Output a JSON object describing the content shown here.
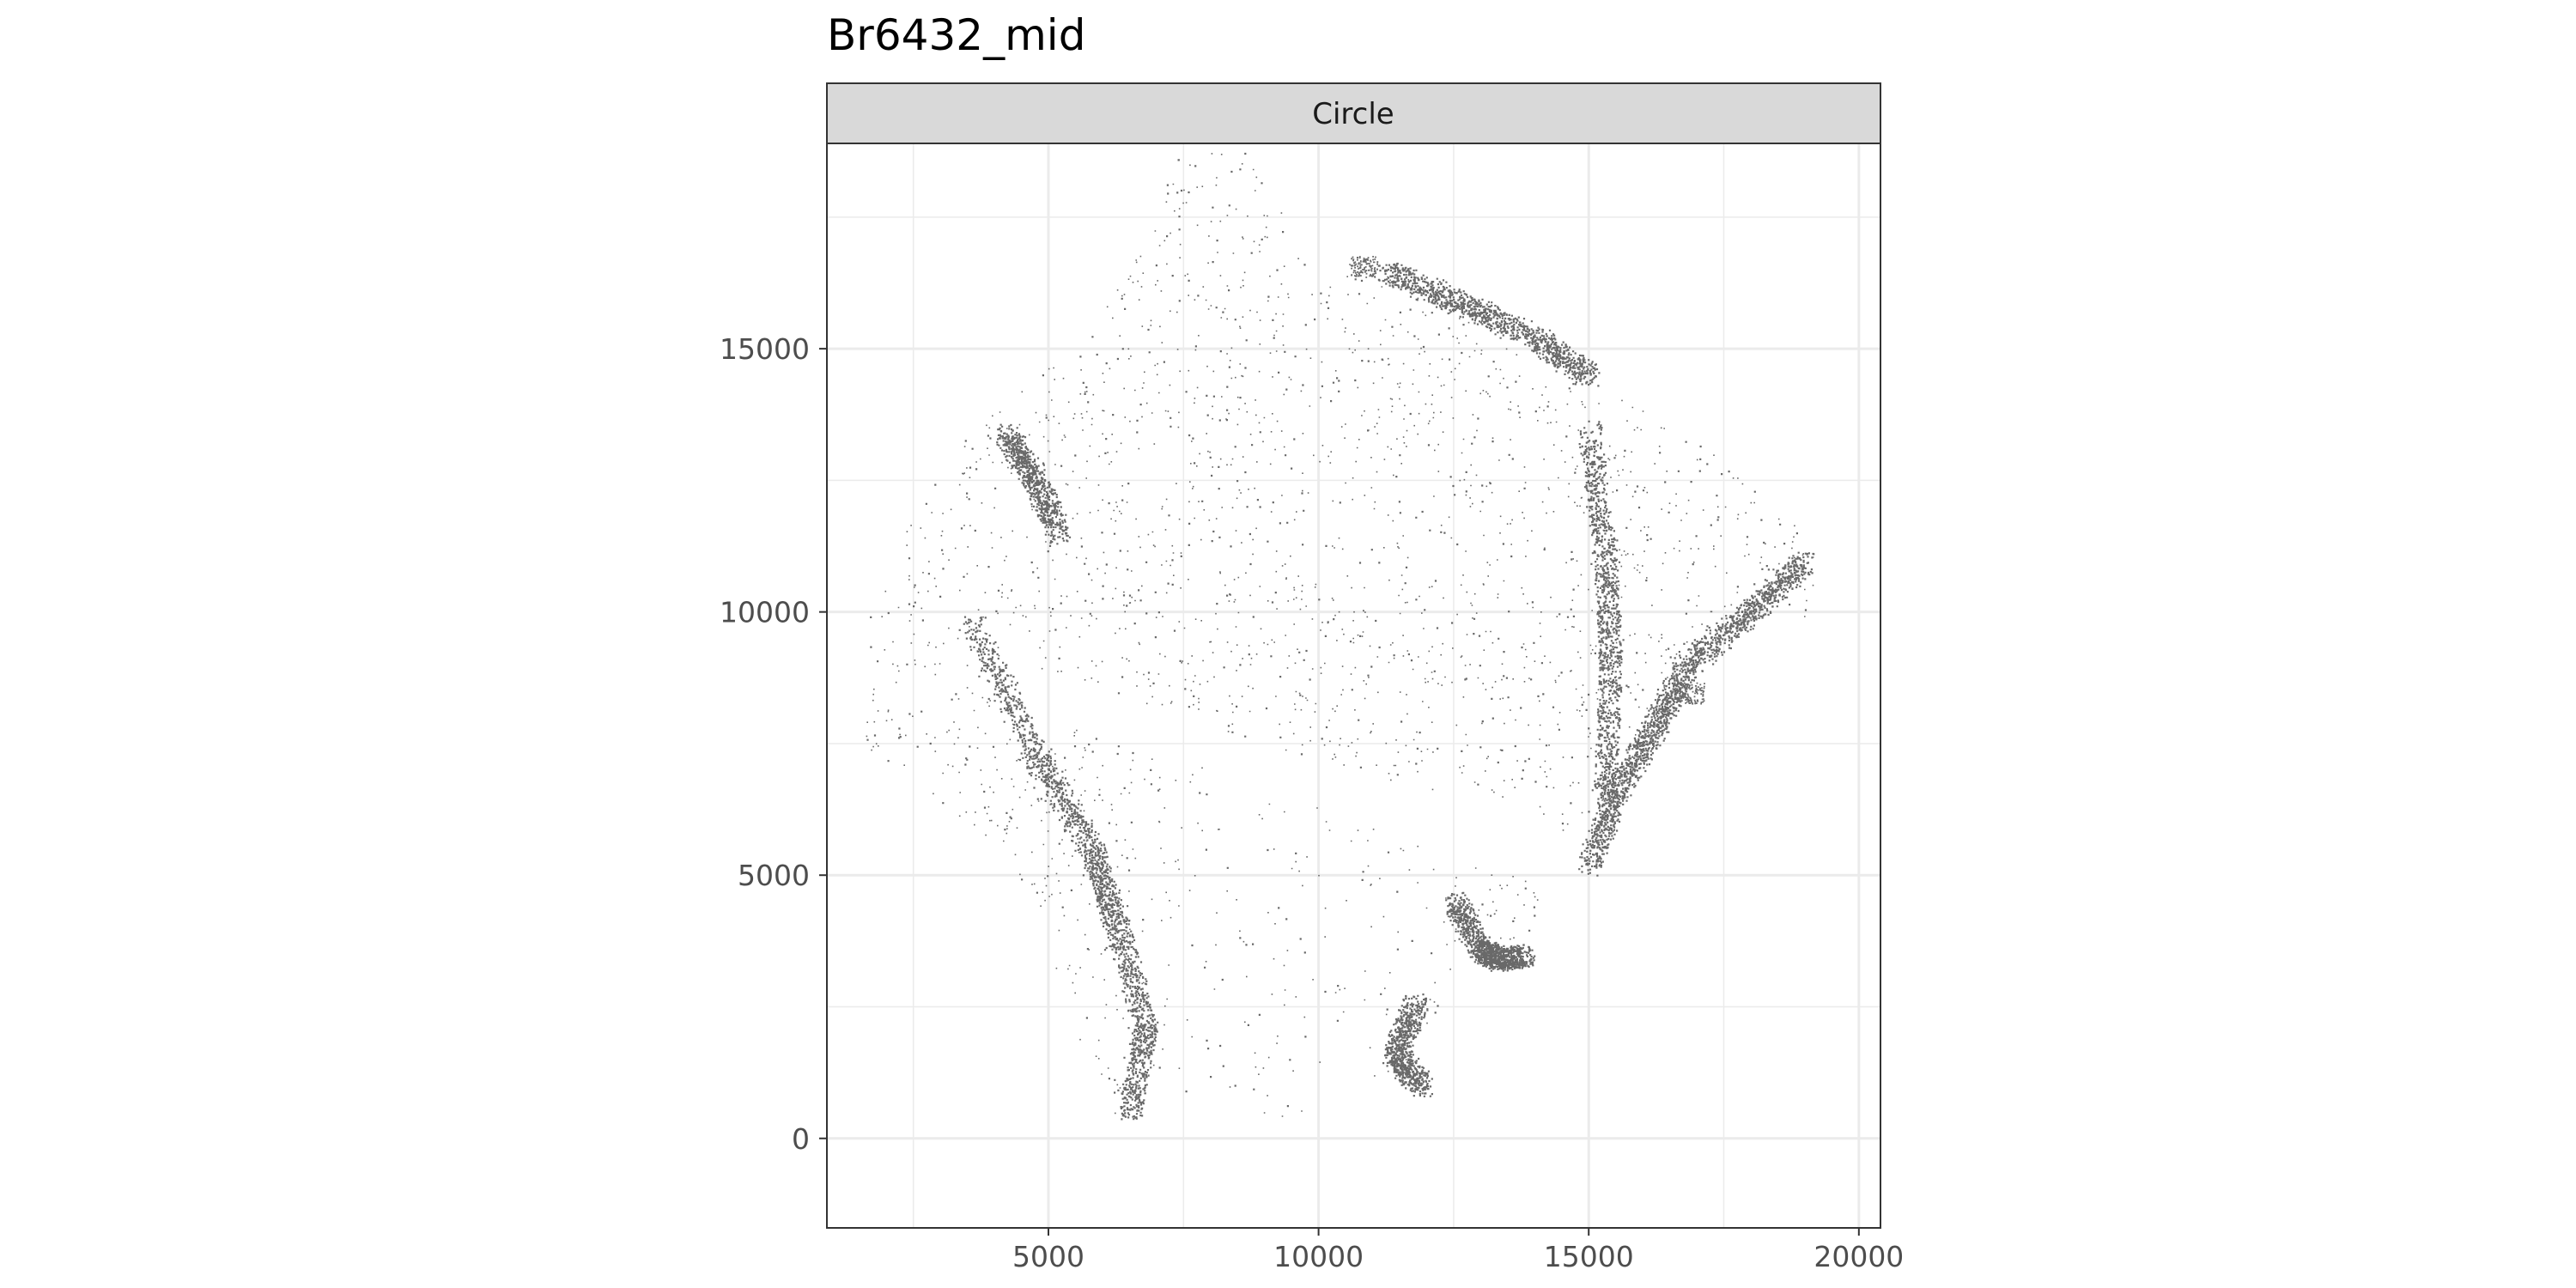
{
  "chart_data": {
    "type": "scatter",
    "title": "Br6432_mid",
    "facet_label": "Circle",
    "xlabel": "",
    "ylabel": "",
    "xlim": [
      900,
      20400
    ],
    "ylim": [
      -1700,
      18900
    ],
    "x_ticks": [
      5000,
      10000,
      15000,
      20000
    ],
    "x_tick_labels": [
      "5000",
      "10000",
      "15000",
      "20000"
    ],
    "y_ticks": [
      0,
      5000,
      10000,
      15000
    ],
    "y_tick_labels": [
      "0",
      "5000",
      "10000",
      "15000"
    ],
    "grid": true,
    "point_color": "#595959",
    "tissue_outline": [
      [
        7400,
        18700
      ],
      [
        8700,
        18800
      ],
      [
        9500,
        17200
      ],
      [
        11200,
        16600
      ],
      [
        13000,
        15700
      ],
      [
        14800,
        14600
      ],
      [
        17300,
        13100
      ],
      [
        19300,
        11200
      ],
      [
        19000,
        9900
      ],
      [
        18600,
        10000
      ],
      [
        17600,
        9800
      ],
      [
        16000,
        7500
      ],
      [
        15000,
        5800
      ],
      [
        14200,
        4900
      ],
      [
        14000,
        3900
      ],
      [
        13000,
        3400
      ],
      [
        12100,
        2300
      ],
      [
        11800,
        1000
      ],
      [
        11000,
        1200
      ],
      [
        10500,
        2200
      ],
      [
        10000,
        1200
      ],
      [
        9700,
        400
      ],
      [
        9000,
        300
      ],
      [
        7500,
        500
      ],
      [
        7200,
        1300
      ],
      [
        6900,
        1200
      ],
      [
        6600,
        300
      ],
      [
        6200,
        0
      ],
      [
        5700,
        1500
      ],
      [
        5200,
        2800
      ],
      [
        4600,
        4800
      ],
      [
        3600,
        5800
      ],
      [
        2200,
        7000
      ],
      [
        1500,
        7500
      ],
      [
        1800,
        9000
      ],
      [
        1300,
        9900
      ],
      [
        1800,
        10700
      ],
      [
        2800,
        12500
      ],
      [
        3900,
        13800
      ],
      [
        5400,
        15000
      ],
      [
        6300,
        16200
      ]
    ],
    "white_gap_band": [
      [
        3000,
        9500
      ],
      [
        7000,
        8200
      ],
      [
        11000,
        6800
      ],
      [
        14000,
        6300
      ],
      [
        15400,
        5000
      ],
      [
        14800,
        4600
      ],
      [
        13000,
        5200
      ],
      [
        9000,
        6700
      ],
      [
        5000,
        8000
      ]
    ],
    "white_slit": [
      [
        6400,
        12700
      ],
      [
        7300,
        13500
      ],
      [
        7400,
        12600
      ],
      [
        6700,
        11600
      ]
    ],
    "dense_bands": [
      [
        [
          3600,
          9800
        ],
        [
          4800,
          7200
        ],
        [
          5800,
          5500
        ],
        [
          6200,
          4200
        ],
        [
          6800,
          2200
        ],
        [
          6500,
          500
        ]
      ],
      [
        [
          15000,
          13500
        ],
        [
          15300,
          11000
        ],
        [
          15400,
          9000
        ],
        [
          15300,
          6500
        ]
      ],
      [
        [
          19000,
          11000
        ],
        [
          18000,
          10000
        ],
        [
          16800,
          9000
        ],
        [
          16200,
          7800
        ],
        [
          15500,
          6600
        ],
        [
          15000,
          5200
        ]
      ],
      [
        [
          11200,
          16500
        ],
        [
          12600,
          15900
        ],
        [
          14000,
          15200
        ],
        [
          15000,
          14500
        ]
      ],
      [
        [
          12500,
          4500
        ],
        [
          13000,
          3600
        ],
        [
          13300,
          3400
        ],
        [
          13800,
          3500
        ]
      ],
      [
        [
          11800,
          2600
        ],
        [
          11400,
          1600
        ],
        [
          11900,
          1000
        ]
      ],
      [
        [
          4200,
          13400
        ],
        [
          4700,
          12600
        ],
        [
          5200,
          11500
        ]
      ]
    ],
    "outlier_blobs": [
      [
        [
          10600,
          16800
        ],
        [
          11100,
          16500
        ],
        [
          10800,
          16400
        ]
      ],
      [
        [
          16600,
          7900
        ],
        [
          17200,
          8600
        ],
        [
          16900,
          8900
        ]
      ]
    ]
  }
}
